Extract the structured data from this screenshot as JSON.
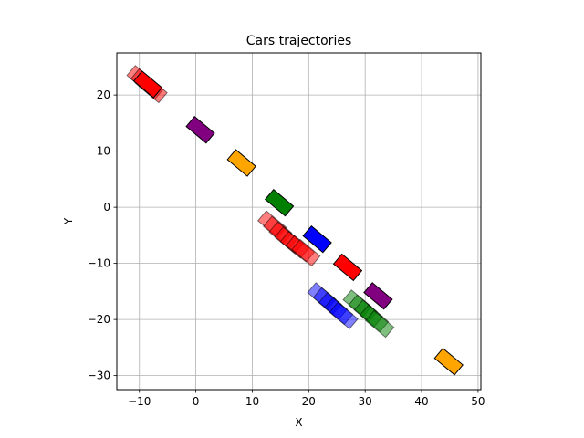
{
  "chart_data": {
    "type": "scatter",
    "title": "Cars trajectories",
    "xlabel": "X",
    "ylabel": "Y",
    "xlim": [
      -14,
      50.5
    ],
    "ylim": [
      -32.5,
      27.5
    ],
    "xticks": [
      -10,
      0,
      10,
      20,
      30,
      40,
      50
    ],
    "yticks": [
      -30,
      -20,
      -10,
      0,
      10,
      20
    ],
    "grid": true,
    "car_size": [
      4.6,
      2.3
    ],
    "series": [
      {
        "color": "#ff0000",
        "alpha": 0.5,
        "cars": [
          {
            "x": -9.7,
            "y": 22.9,
            "angle": -40
          },
          {
            "x": -9.0,
            "y": 22.3,
            "angle": -40
          },
          {
            "x": -8.3,
            "y": 21.6,
            "angle": -40
          },
          {
            "x": -7.6,
            "y": 21.0,
            "angle": -40
          }
        ]
      },
      {
        "color": "#ff0000",
        "alpha": 1.0,
        "cars": [
          {
            "x": -8.5,
            "y": 21.9,
            "angle": -40
          }
        ]
      },
      {
        "color": "#800080",
        "alpha": 1.0,
        "cars": [
          {
            "x": 0.8,
            "y": 13.8,
            "angle": -40
          }
        ]
      },
      {
        "color": "#ffa500",
        "alpha": 1.0,
        "cars": [
          {
            "x": 8.1,
            "y": 7.9,
            "angle": -40
          }
        ]
      },
      {
        "color": "#008000",
        "alpha": 1.0,
        "cars": [
          {
            "x": 14.8,
            "y": 0.8,
            "angle": -40
          }
        ]
      },
      {
        "color": "#ff0000",
        "alpha": 0.5,
        "cars": [
          {
            "x": 13.5,
            "y": -3.0,
            "angle": -40
          },
          {
            "x": 14.5,
            "y": -4.0,
            "angle": -40
          },
          {
            "x": 15.5,
            "y": -5.0,
            "angle": -40
          },
          {
            "x": 16.5,
            "y": -5.9,
            "angle": -40
          },
          {
            "x": 17.5,
            "y": -6.7,
            "angle": -40
          },
          {
            "x": 18.5,
            "y": -7.4,
            "angle": -40
          },
          {
            "x": 19.5,
            "y": -8.1,
            "angle": -40
          }
        ]
      },
      {
        "color": "#0000ff",
        "alpha": 1.0,
        "cars": [
          {
            "x": 21.5,
            "y": -5.7,
            "angle": -40
          }
        ]
      },
      {
        "color": "#ff0000",
        "alpha": 1.0,
        "cars": [
          {
            "x": 26.9,
            "y": -10.7,
            "angle": -40
          }
        ]
      },
      {
        "color": "#800080",
        "alpha": 1.0,
        "cars": [
          {
            "x": 32.3,
            "y": -15.8,
            "angle": -40
          }
        ]
      },
      {
        "color": "#0000ff",
        "alpha": 0.5,
        "cars": [
          {
            "x": 22.3,
            "y": -15.8,
            "angle": -40
          },
          {
            "x": 23.3,
            "y": -16.7,
            "angle": -40
          },
          {
            "x": 24.3,
            "y": -17.6,
            "angle": -40
          },
          {
            "x": 25.3,
            "y": -18.5,
            "angle": -40
          },
          {
            "x": 26.2,
            "y": -19.3,
            "angle": -40
          }
        ]
      },
      {
        "color": "#008000",
        "alpha": 0.5,
        "cars": [
          {
            "x": 28.6,
            "y": -17.1,
            "angle": -40
          },
          {
            "x": 29.6,
            "y": -18.0,
            "angle": -40
          },
          {
            "x": 30.6,
            "y": -18.9,
            "angle": -40
          },
          {
            "x": 31.6,
            "y": -19.8,
            "angle": -40
          },
          {
            "x": 32.6,
            "y": -20.8,
            "angle": -40
          }
        ]
      },
      {
        "color": "#ffa500",
        "alpha": 1.0,
        "cars": [
          {
            "x": 44.8,
            "y": -27.5,
            "angle": -40
          }
        ]
      }
    ]
  }
}
